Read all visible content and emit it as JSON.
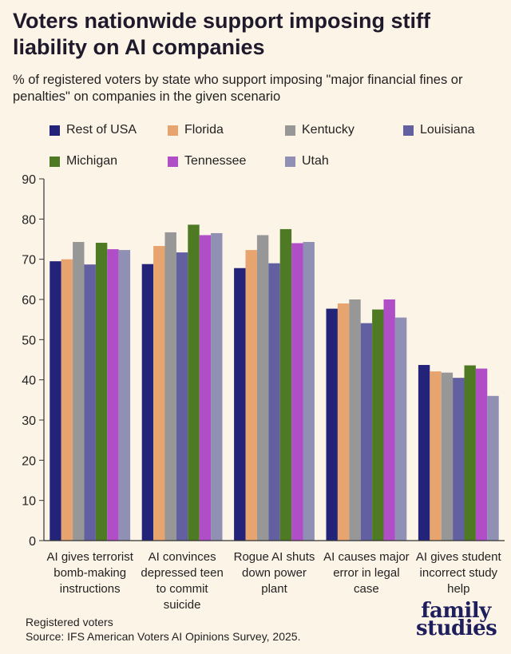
{
  "header": {
    "title": "Voters nationwide support imposing stiff liability on AI companies",
    "subtitle": "% of registered voters by state who support imposing \"major financial fines or penalties\" on companies in the given scenario"
  },
  "footer": {
    "note": "Registered voters",
    "source": "Source: IFS American Voters AI Opinions Survey, 2025."
  },
  "logo": {
    "line1": "family",
    "line2": "studies"
  },
  "chart_data": {
    "type": "bar",
    "categories": [
      [
        "AI gives terrorist",
        "bomb-making",
        "instructions"
      ],
      [
        "AI convinces",
        "depressed teen",
        "to commit",
        "suicide"
      ],
      [
        "Rogue AI shuts",
        "down power",
        "plant"
      ],
      [
        "AI causes major",
        "error in legal",
        "case"
      ],
      [
        "AI gives student",
        "incorrect study",
        "help"
      ]
    ],
    "series": [
      {
        "name": "Rest of USA",
        "color": "#23237a",
        "values": [
          69.5,
          68.8,
          67.8,
          57.7,
          43.7
        ]
      },
      {
        "name": "Florida",
        "color": "#e8a46e",
        "values": [
          70.0,
          73.3,
          72.3,
          59.0,
          42.1
        ]
      },
      {
        "name": "Kentucky",
        "color": "#979797",
        "values": [
          74.3,
          76.7,
          76.0,
          60.0,
          41.8
        ]
      },
      {
        "name": "Louisiana",
        "color": "#6360a2",
        "values": [
          68.7,
          71.7,
          69.0,
          54.1,
          40.5
        ]
      },
      {
        "name": "Michigan",
        "color": "#4d7a22",
        "values": [
          74.1,
          78.6,
          77.5,
          57.5,
          43.6
        ]
      },
      {
        "name": "Tennessee",
        "color": "#b04ec7",
        "values": [
          72.5,
          76.0,
          74.0,
          60.0,
          42.8
        ]
      },
      {
        "name": "Utah",
        "color": "#8f90b3",
        "values": [
          72.3,
          76.5,
          74.3,
          55.5,
          36.0
        ]
      }
    ],
    "yticks": [
      0,
      10,
      20,
      30,
      40,
      50,
      60,
      70,
      80,
      90
    ],
    "ylim": [
      0,
      90
    ],
    "grid": false,
    "legend_position": "top"
  }
}
